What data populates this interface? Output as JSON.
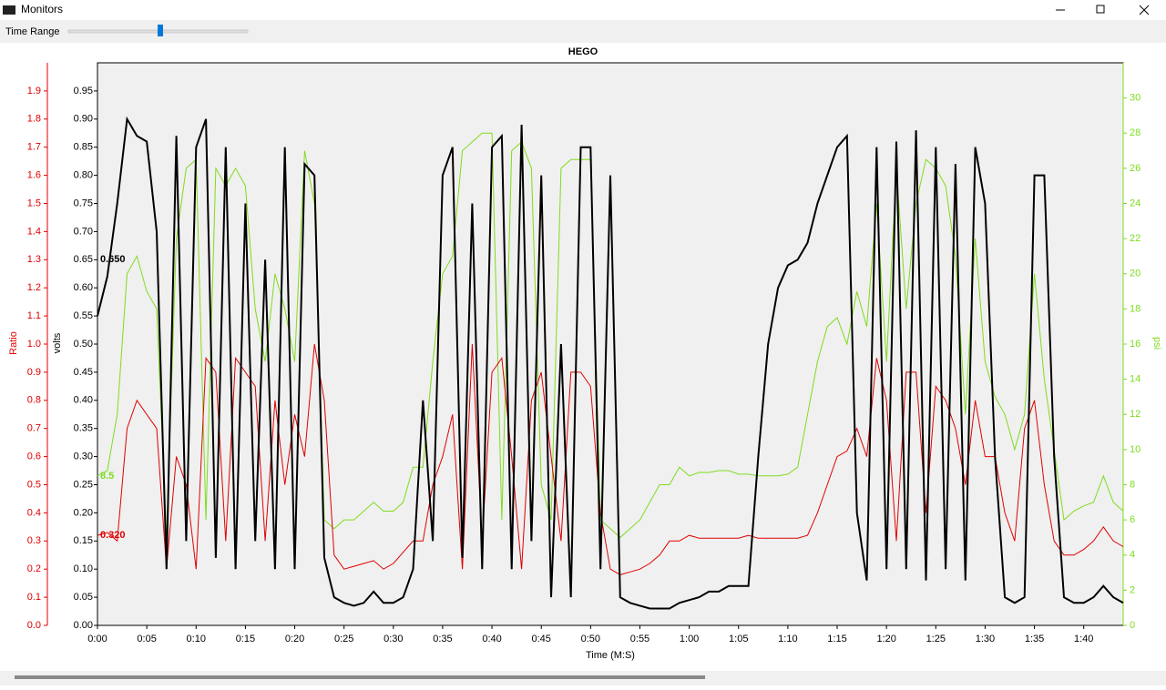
{
  "window": {
    "title": "Monitors",
    "toolbar_label": "Time Range"
  },
  "chart_data": {
    "type": "line",
    "title": "HEGO",
    "xlabel": "Time (M:S)",
    "ylabel": "volts",
    "y2label": "psi",
    "y3label": "Ratio",
    "xlim": [
      0,
      104
    ],
    "ylim": [
      0,
      1
    ],
    "y2lim": [
      0,
      32
    ],
    "y3lim": [
      0,
      2
    ],
    "xticks": [
      {
        "value": 0,
        "label": "0:00"
      },
      {
        "value": 5,
        "label": "0:05"
      },
      {
        "value": 10,
        "label": "0:10"
      },
      {
        "value": 15,
        "label": "0:15"
      },
      {
        "value": 20,
        "label": "0:20"
      },
      {
        "value": 25,
        "label": "0:25"
      },
      {
        "value": 30,
        "label": "0:30"
      },
      {
        "value": 35,
        "label": "0:35"
      },
      {
        "value": 40,
        "label": "0:40"
      },
      {
        "value": 45,
        "label": "0:45"
      },
      {
        "value": 50,
        "label": "0:50"
      },
      {
        "value": 55,
        "label": "0:55"
      },
      {
        "value": 60,
        "label": "1:00"
      },
      {
        "value": 65,
        "label": "1:05"
      },
      {
        "value": 70,
        "label": "1:10"
      },
      {
        "value": 75,
        "label": "1:15"
      },
      {
        "value": 80,
        "label": "1:20"
      },
      {
        "value": 85,
        "label": "1:25"
      },
      {
        "value": 90,
        "label": "1:30"
      },
      {
        "value": 95,
        "label": "1:35"
      },
      {
        "value": 100,
        "label": "1:40"
      }
    ],
    "yticks": [
      {
        "value": 0,
        "label": "0.00"
      },
      0.05,
      {
        "value": 0.1,
        "label": "0.10"
      },
      0.15,
      {
        "value": 0.2,
        "label": "0.20"
      },
      0.25,
      {
        "value": 0.3,
        "label": "0.30"
      },
      0.35,
      {
        "value": 0.4,
        "label": "0.40"
      },
      0.45,
      {
        "value": 0.5,
        "label": "0.50"
      },
      0.55,
      {
        "value": 0.6,
        "label": "0.60"
      },
      0.65,
      {
        "value": 0.7,
        "label": "0.70"
      },
      0.75,
      {
        "value": 0.8,
        "label": "0.80"
      },
      0.85,
      {
        "value": 0.9,
        "label": "0.90"
      },
      0.95
    ],
    "y2ticks": [
      0,
      2,
      4,
      6,
      8,
      10,
      12,
      14,
      16,
      18,
      20,
      22,
      24,
      26,
      28,
      30
    ],
    "y3ticks": [
      {
        "value": 0,
        "label": "0.0"
      },
      0.1,
      0.2,
      0.3,
      0.4,
      0.5,
      0.6,
      0.7,
      0.8,
      0.9,
      {
        "value": 1,
        "label": "1.0"
      },
      1.1,
      1.2,
      1.3,
      1.4,
      1.5,
      1.6,
      1.7,
      1.8,
      1.9
    ],
    "x": [
      0,
      1,
      2,
      3,
      4,
      5,
      6,
      7,
      8,
      9,
      10,
      11,
      12,
      13,
      14,
      15,
      16,
      17,
      18,
      19,
      20,
      21,
      22,
      23,
      24,
      25,
      26,
      27,
      28,
      29,
      30,
      31,
      32,
      33,
      34,
      35,
      36,
      37,
      38,
      39,
      40,
      41,
      42,
      43,
      44,
      45,
      46,
      47,
      48,
      49,
      50,
      51,
      52,
      53,
      54,
      55,
      56,
      57,
      58,
      59,
      60,
      61,
      62,
      63,
      64,
      65,
      66,
      67,
      68,
      69,
      70,
      71,
      72,
      73,
      74,
      75,
      76,
      77,
      78,
      79,
      80,
      81,
      82,
      83,
      84,
      85,
      86,
      87,
      88,
      89,
      90,
      91,
      92,
      93,
      94,
      95,
      96,
      97,
      98,
      99,
      100,
      101,
      102,
      103,
      104
    ],
    "series": [
      {
        "name": "psi",
        "color": "#7fdc1e",
        "axis": "y2",
        "cursor": 8.5,
        "width": 1,
        "values": [
          8.5,
          8.8,
          12,
          20,
          21,
          19,
          18,
          5,
          22,
          26,
          26.5,
          6,
          26,
          25,
          26,
          25,
          18,
          15,
          20,
          18,
          15,
          27,
          24,
          6,
          5.5,
          6,
          6,
          6.5,
          7,
          6.5,
          6.5,
          7,
          9,
          9,
          15,
          20,
          21,
          27,
          27.5,
          28,
          28,
          6,
          27,
          27.5,
          26,
          8,
          6,
          26,
          26.5,
          26.5,
          26.5,
          6,
          5.5,
          5,
          5.5,
          6,
          7,
          8,
          8,
          9,
          8.5,
          8.7,
          8.7,
          8.8,
          8.8,
          8.6,
          8.6,
          8.5,
          8.5,
          8.5,
          8.6,
          9,
          12,
          15,
          17,
          17.5,
          16,
          19,
          17,
          24,
          15,
          26,
          18,
          24,
          26.5,
          26,
          25,
          21,
          12,
          22,
          15,
          13,
          12,
          10,
          12,
          20,
          14,
          10,
          6,
          6.5,
          6.8,
          7,
          8.5,
          7,
          6.5
        ]
      },
      {
        "name": "Ratio",
        "color": "#e00000",
        "axis": "y3",
        "cursor": {
          "value": 0.32,
          "label": "0.320"
        },
        "width": 1,
        "values": [
          0.32,
          0.33,
          0.3,
          0.7,
          0.8,
          0.75,
          0.7,
          0.2,
          0.6,
          0.5,
          0.2,
          0.95,
          0.9,
          0.3,
          0.95,
          0.9,
          0.85,
          0.3,
          0.8,
          0.5,
          0.75,
          0.6,
          1.0,
          0.8,
          0.25,
          0.2,
          0.21,
          0.22,
          0.23,
          0.2,
          0.22,
          0.26,
          0.3,
          0.3,
          0.5,
          0.6,
          0.75,
          0.2,
          1.0,
          0.3,
          0.9,
          0.95,
          0.6,
          0.2,
          0.8,
          0.9,
          0.6,
          0.3,
          0.9,
          0.9,
          0.85,
          0.4,
          0.2,
          0.18,
          0.19,
          0.2,
          0.22,
          0.25,
          0.3,
          0.3,
          0.32,
          0.31,
          0.31,
          0.31,
          0.31,
          0.31,
          0.32,
          0.31,
          0.31,
          0.31,
          0.31,
          0.31,
          0.32,
          0.4,
          0.5,
          0.6,
          0.62,
          0.7,
          0.6,
          0.95,
          0.8,
          0.3,
          0.9,
          0.9,
          0.4,
          0.85,
          0.8,
          0.7,
          0.5,
          0.8,
          0.6,
          0.6,
          0.4,
          0.3,
          0.7,
          0.8,
          0.5,
          0.3,
          0.25,
          0.25,
          0.27,
          0.3,
          0.35,
          0.3,
          0.28
        ]
      },
      {
        "name": "volts",
        "color": "#000000",
        "axis": "y",
        "cursor": {
          "value": 0.65,
          "label": "0.650"
        },
        "width": 2,
        "values": [
          0.55,
          0.62,
          0.75,
          0.9,
          0.87,
          0.86,
          0.7,
          0.1,
          0.87,
          0.15,
          0.85,
          0.9,
          0.12,
          0.85,
          0.1,
          0.75,
          0.15,
          0.65,
          0.1,
          0.85,
          0.1,
          0.82,
          0.8,
          0.12,
          0.05,
          0.04,
          0.035,
          0.04,
          0.06,
          0.04,
          0.04,
          0.05,
          0.1,
          0.4,
          0.15,
          0.8,
          0.85,
          0.12,
          0.75,
          0.1,
          0.85,
          0.87,
          0.1,
          0.89,
          0.15,
          0.8,
          0.05,
          0.5,
          0.05,
          0.85,
          0.85,
          0.1,
          0.8,
          0.05,
          0.04,
          0.035,
          0.03,
          0.03,
          0.03,
          0.04,
          0.045,
          0.05,
          0.06,
          0.06,
          0.07,
          0.07,
          0.07,
          0.3,
          0.5,
          0.6,
          0.64,
          0.65,
          0.68,
          0.75,
          0.8,
          0.85,
          0.87,
          0.2,
          0.08,
          0.85,
          0.1,
          0.86,
          0.1,
          0.88,
          0.08,
          0.85,
          0.1,
          0.82,
          0.08,
          0.85,
          0.75,
          0.3,
          0.05,
          0.04,
          0.05,
          0.8,
          0.8,
          0.3,
          0.05,
          0.04,
          0.04,
          0.05,
          0.07,
          0.05,
          0.04
        ]
      }
    ]
  }
}
